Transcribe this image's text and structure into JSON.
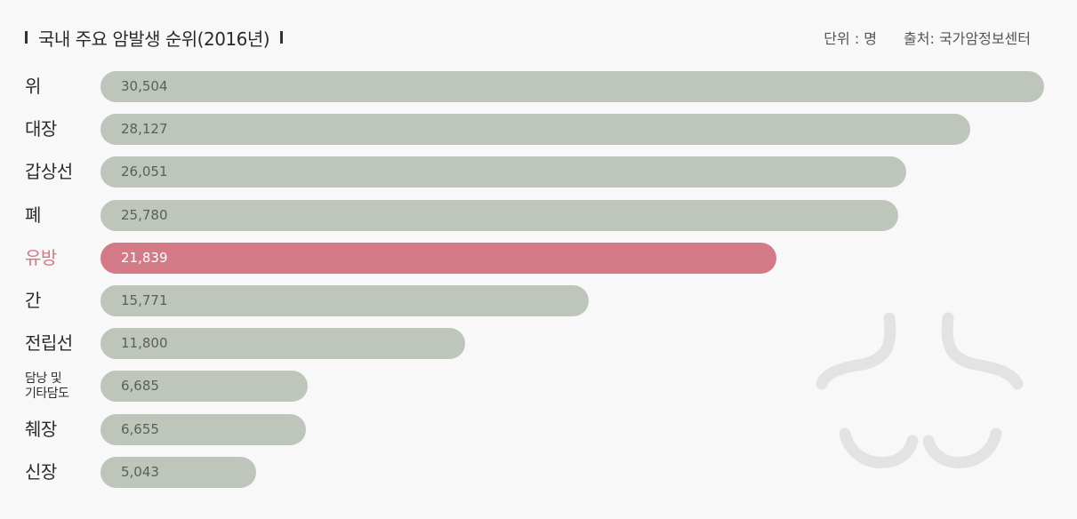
{
  "header": {
    "title": "국내 주요 암발생 순위(2016년)",
    "unit": "단위 : 명",
    "source": "출처: 국가암정보센터"
  },
  "colors": {
    "default_bar": "#bec6bb",
    "highlight_bar": "#d47a87",
    "highlight_text": "#d47a87",
    "background": "#f8f8f8",
    "decoration": "#e3e3e3"
  },
  "decoration": {
    "icon": "lungs-outline-icon"
  },
  "chart_data": {
    "type": "bar",
    "orientation": "horizontal",
    "title": "국내 주요 암발생 순위(2016년)",
    "unit": "단위 : 명",
    "highlight": "유방",
    "grid": false,
    "categories": [
      "위",
      "대장",
      "갑상선",
      "폐",
      "유방",
      "간",
      "전립선",
      "담낭 및 기타담도",
      "췌장",
      "신장"
    ],
    "value_labels": [
      "30,504",
      "28,127",
      "26,051",
      "25,780",
      "21,839",
      "15,771",
      "11,800",
      "6,685",
      "6,655",
      "5,043"
    ],
    "values": [
      30504,
      28127,
      26051,
      25780,
      21839,
      15771,
      11800,
      6685,
      6655,
      5043
    ]
  }
}
